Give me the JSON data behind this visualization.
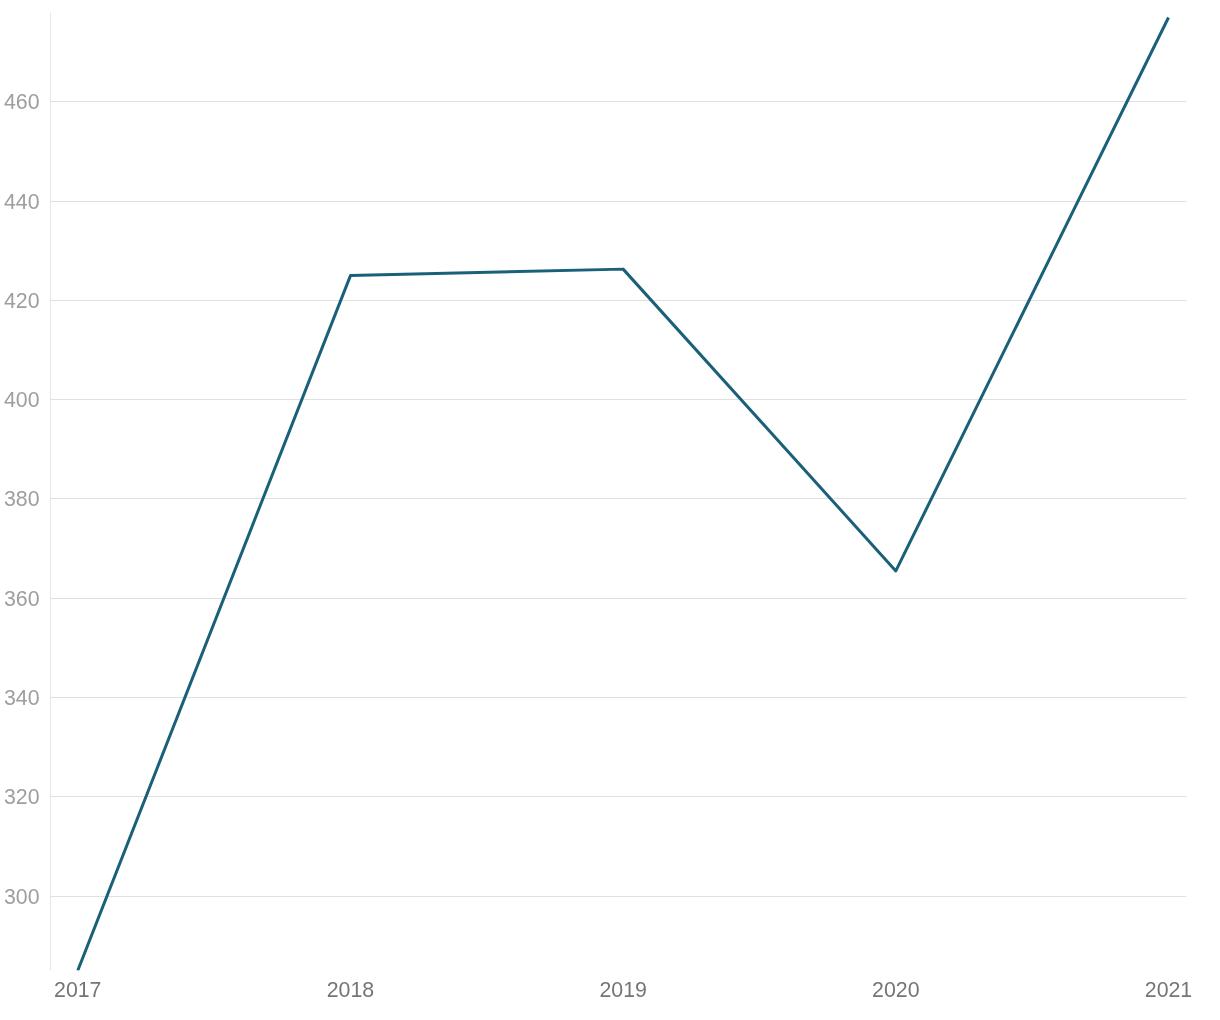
{
  "chart_data": {
    "type": "line",
    "categories": [
      "2017",
      "2018",
      "2019",
      "2020",
      "2021"
    ],
    "series": [
      {
        "color": "#1b6079",
        "values": [
          285,
          425,
          426.3,
          365.5,
          477
        ]
      }
    ],
    "ylim": [
      285,
      478
    ],
    "yticks": [
      300,
      320,
      340,
      360,
      380,
      400,
      420,
      440,
      460
    ],
    "grid": "y",
    "marker": "none",
    "line_style": "solid"
  }
}
